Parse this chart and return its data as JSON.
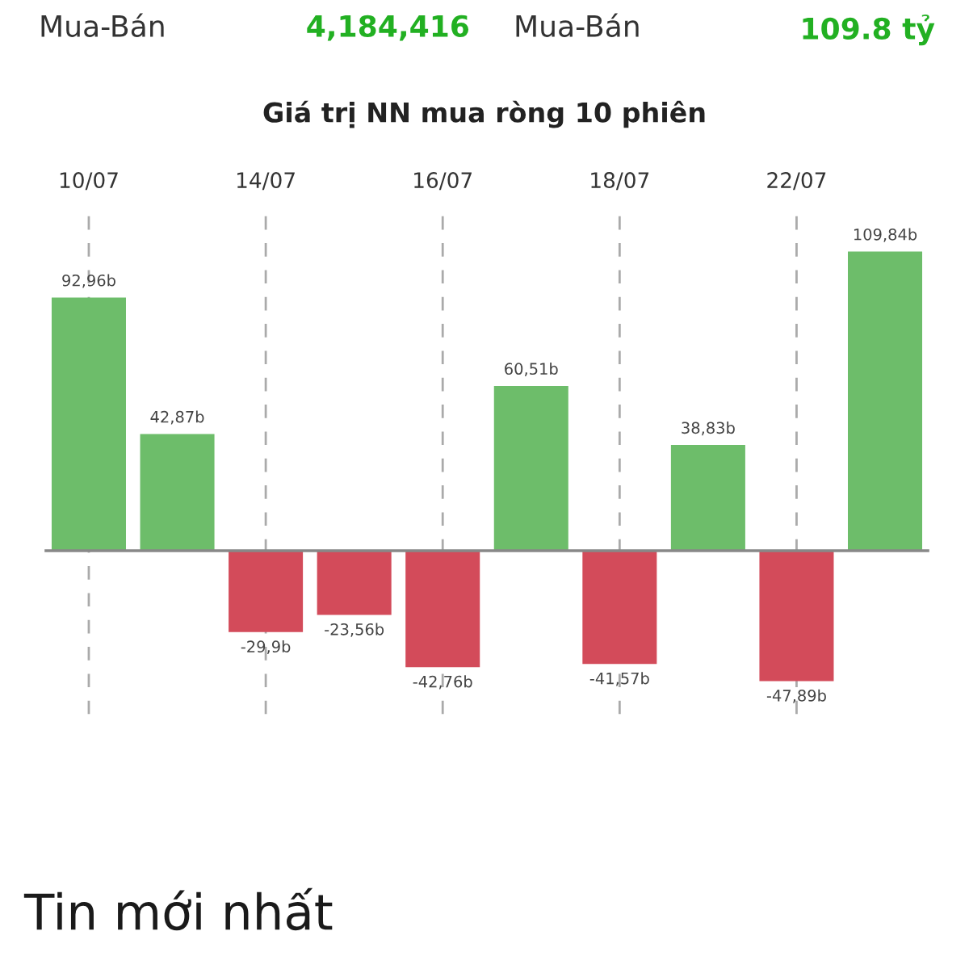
{
  "chart_data": {
    "type": "bar",
    "title": "Giá trị NN mua ròng 10 phiên",
    "categories": [
      "10/07",
      null,
      "14/07",
      null,
      "16/07",
      null,
      "18/07",
      null,
      "22/07",
      null
    ],
    "values": [
      92.96,
      42.87,
      -29.9,
      -23.56,
      -42.76,
      60.51,
      -41.57,
      38.83,
      -47.89,
      109.84
    ],
    "colors": [
      "#6dbd6a",
      "#6dbd6a",
      "#d34b5a",
      "#d34b5a",
      "#d34b5a",
      "#6dbd6a",
      "#d34b5a",
      "#6dbd6a",
      "#d34b5a",
      "#6dbd6a"
    ],
    "value_labels": [
      "92,96b",
      "42,87b",
      "-29,9b",
      "-23,56b",
      "-42,76b",
      "60,51b",
      "-41,57b",
      "38,83b",
      "-47,89b",
      "109,84b"
    ],
    "ylim": [
      -60,
      125
    ],
    "tick_labels": "x",
    "grid": "x",
    "line_style": "dashed",
    "legend": false,
    "annotations": [
      "Mua-Bán",
      "4,184,416",
      "Mua-Bán",
      "109.8 tỷ",
      "Tin mới nhất"
    ]
  }
}
